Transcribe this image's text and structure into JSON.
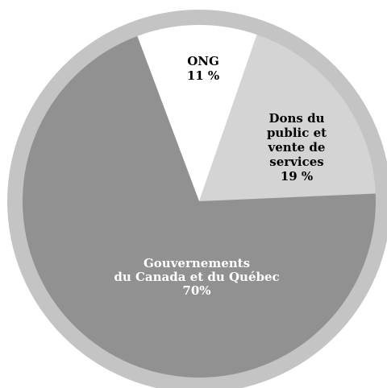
{
  "chart_data": {
    "type": "pie",
    "title": "",
    "ring_color": "#c4c4c4",
    "slices": [
      {
        "key": "ong",
        "lines": [
          "ONG",
          "11 %"
        ],
        "value": 11,
        "color": "#ffffff",
        "text_color": "#000000"
      },
      {
        "key": "dons",
        "lines": [
          "Dons du",
          "public et",
          "vente de",
          "services",
          "19 %"
        ],
        "value": 19,
        "color": "#d4d4d4",
        "text_color": "#000000"
      },
      {
        "key": "gouvernements",
        "lines": [
          "Gouvernements",
          "du Canada et du Québec",
          "70%"
        ],
        "value": 70,
        "color": "#919191",
        "text_color": "#ffffff"
      }
    ]
  }
}
